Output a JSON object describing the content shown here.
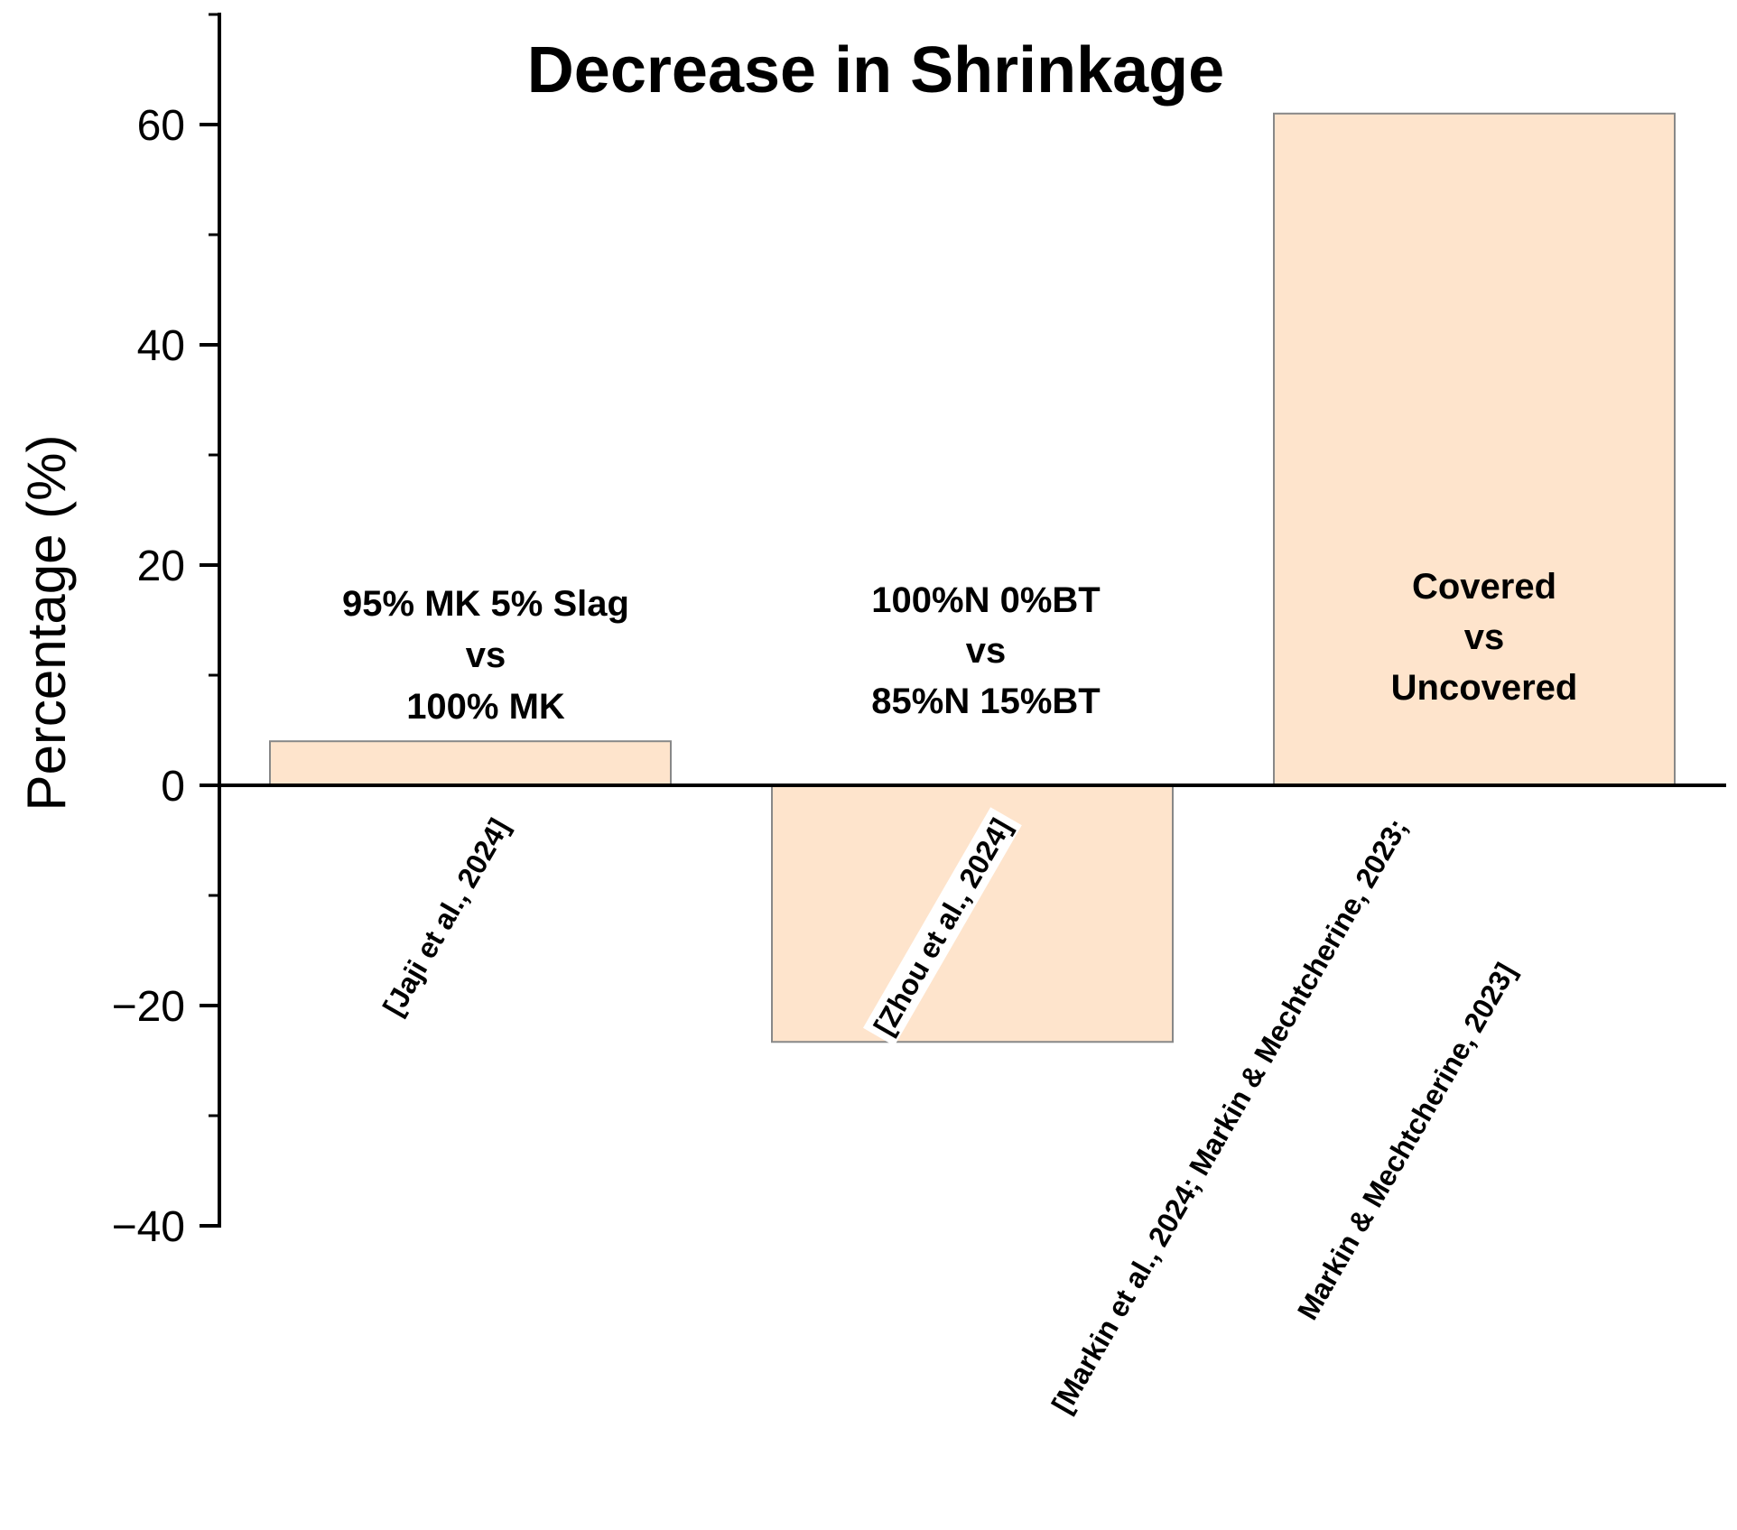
{
  "chart_data": {
    "type": "bar",
    "title": "Decrease in Shrinkage",
    "xlabel": "",
    "ylabel": "Percentage (%)",
    "ylim": [
      -40,
      70
    ],
    "yticks": [
      "−40",
      "−20",
      "0",
      "20",
      "40",
      "60"
    ],
    "ytick_values": [
      -40,
      -20,
      0,
      20,
      40,
      60
    ],
    "grid": false,
    "bar_color": "#fee4cc",
    "bar_edge_color": "#888888",
    "categories": [
      "[Jaji et al., 2024]",
      "[Zhou et al., 2024]",
      "[Markin et al., 2024; Markin & Mechtcherine, 2023; Markin & Mechtcherine, 2023]"
    ],
    "category_lines": [
      [
        "[Jaji et al., 2024]"
      ],
      [
        "[Zhou et al., 2024]"
      ],
      [
        "[Markin et al., 2024; Markin & Mechtcherine, 2023;",
        "Markin & Mechtcherine, 2023]"
      ]
    ],
    "values": [
      4,
      -23.3,
      61
    ],
    "annotations": [
      [
        "95% MK 5% Slag",
        "vs",
        "100% MK"
      ],
      [
        "100%N 0%BT",
        "vs",
        "85%N 15%BT"
      ],
      [
        "Covered",
        "vs",
        "Uncovered"
      ]
    ]
  }
}
